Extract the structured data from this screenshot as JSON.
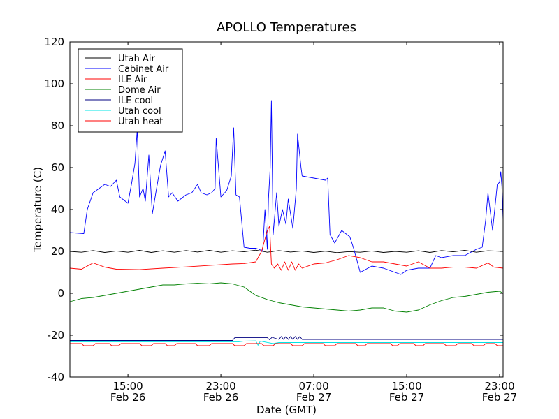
{
  "chart_data": {
    "type": "line",
    "title": "APOLLO Temperatures",
    "xlabel": "Date (GMT)",
    "ylabel": "Temperature (C)",
    "x_unit": "hours since Feb 26 10:00 GMT",
    "xlim": [
      0,
      37.3
    ],
    "ylim": [
      -40,
      120
    ],
    "yticks": [
      -40,
      -20,
      0,
      20,
      40,
      60,
      80,
      100,
      120
    ],
    "xticks": [
      {
        "x": 5,
        "line1": "15:00",
        "line2": "Feb 26"
      },
      {
        "x": 13,
        "line1": "23:00",
        "line2": "Feb 26"
      },
      {
        "x": 21,
        "line1": "07:00",
        "line2": "Feb 27"
      },
      {
        "x": 29,
        "line1": "15:00",
        "line2": "Feb 27"
      },
      {
        "x": 37,
        "line1": "23:00",
        "line2": "Feb 27"
      }
    ],
    "legend_position": "top-left",
    "series": [
      {
        "name": "Utah Air",
        "color": "#000000",
        "points": [
          [
            0,
            20
          ],
          [
            1,
            19.6
          ],
          [
            2,
            20.4
          ],
          [
            3,
            19.5
          ],
          [
            4,
            20.2
          ],
          [
            5,
            19.6
          ],
          [
            6,
            20.5
          ],
          [
            7,
            19.5
          ],
          [
            8,
            20.3
          ],
          [
            9,
            19.6
          ],
          [
            10,
            20.4
          ],
          [
            11,
            19.7
          ],
          [
            12,
            20.5
          ],
          [
            13,
            19.6
          ],
          [
            14,
            20.3
          ],
          [
            15,
            19.8
          ],
          [
            16,
            20.6
          ],
          [
            17,
            19.6
          ],
          [
            18,
            20.4
          ],
          [
            19,
            19.7
          ],
          [
            20,
            20.2
          ],
          [
            21,
            19.5
          ],
          [
            22,
            20.1
          ],
          [
            23,
            19.4
          ],
          [
            24,
            19.9
          ],
          [
            25,
            19.6
          ],
          [
            26,
            20.2
          ],
          [
            27,
            19.5
          ],
          [
            28,
            20
          ],
          [
            29,
            19.6
          ],
          [
            30,
            20.3
          ],
          [
            31,
            19.5
          ],
          [
            32,
            20.4
          ],
          [
            33,
            19.8
          ],
          [
            34,
            20.5
          ],
          [
            35,
            19.6
          ],
          [
            36,
            20.3
          ],
          [
            37.3,
            20
          ]
        ]
      },
      {
        "name": "Cabinet Air",
        "color": "#0000ff",
        "points": [
          [
            0,
            29
          ],
          [
            1.2,
            28.5
          ],
          [
            1.5,
            40
          ],
          [
            2,
            48
          ],
          [
            2.5,
            50
          ],
          [
            3,
            52
          ],
          [
            3.5,
            51
          ],
          [
            4,
            54
          ],
          [
            4.3,
            46
          ],
          [
            5,
            43
          ],
          [
            5.3,
            52
          ],
          [
            5.6,
            62
          ],
          [
            5.8,
            78
          ],
          [
            6,
            46
          ],
          [
            6.3,
            50
          ],
          [
            6.5,
            44
          ],
          [
            6.8,
            66
          ],
          [
            7.1,
            38
          ],
          [
            7.4,
            48
          ],
          [
            7.8,
            61
          ],
          [
            8.2,
            68
          ],
          [
            8.5,
            46
          ],
          [
            8.8,
            48
          ],
          [
            9.3,
            44
          ],
          [
            10,
            47
          ],
          [
            10.5,
            48
          ],
          [
            11,
            52
          ],
          [
            11.3,
            48
          ],
          [
            11.8,
            47
          ],
          [
            12.2,
            48
          ],
          [
            12.5,
            50
          ],
          [
            12.6,
            74
          ],
          [
            13,
            46
          ],
          [
            13.5,
            49
          ],
          [
            13.9,
            56
          ],
          [
            14.1,
            79
          ],
          [
            14.3,
            47
          ],
          [
            14.6,
            46
          ],
          [
            15,
            22
          ],
          [
            15.5,
            21.5
          ],
          [
            16,
            21.5
          ],
          [
            16.3,
            21
          ],
          [
            16.6,
            20
          ],
          [
            16.8,
            40
          ],
          [
            17,
            21
          ],
          [
            17.1,
            45
          ],
          [
            17.25,
            60
          ],
          [
            17.35,
            92
          ],
          [
            17.5,
            28
          ],
          [
            17.8,
            48
          ],
          [
            18,
            32
          ],
          [
            18.3,
            40
          ],
          [
            18.6,
            33
          ],
          [
            18.8,
            45
          ],
          [
            19,
            38
          ],
          [
            19.2,
            31
          ],
          [
            19.5,
            50
          ],
          [
            19.6,
            76
          ],
          [
            19.9,
            60
          ],
          [
            20,
            56
          ],
          [
            21,
            55
          ],
          [
            22,
            54
          ],
          [
            22.2,
            55
          ],
          [
            22.4,
            28
          ],
          [
            22.8,
            24
          ],
          [
            23,
            26
          ],
          [
            23.4,
            30
          ],
          [
            24.1,
            27
          ],
          [
            24.4,
            22
          ],
          [
            25,
            10
          ],
          [
            26,
            13
          ],
          [
            27,
            12
          ],
          [
            28,
            10
          ],
          [
            28.5,
            9
          ],
          [
            29,
            11
          ],
          [
            30,
            12
          ],
          [
            31,
            12
          ],
          [
            31.5,
            18
          ],
          [
            32,
            17
          ],
          [
            33,
            18
          ],
          [
            34,
            18
          ],
          [
            35,
            21
          ],
          [
            35.5,
            22
          ],
          [
            35.8,
            35
          ],
          [
            36,
            48
          ],
          [
            36.4,
            30
          ],
          [
            36.8,
            52
          ],
          [
            37,
            53
          ],
          [
            37.1,
            58
          ],
          [
            37.2,
            51
          ],
          [
            37.3,
            35
          ]
        ]
      },
      {
        "name": "ILE Air",
        "color": "#ff0000",
        "points": [
          [
            0,
            12
          ],
          [
            1,
            11.5
          ],
          [
            2,
            14.5
          ],
          [
            3,
            12.5
          ],
          [
            4,
            11.5
          ],
          [
            6,
            11.3
          ],
          [
            8,
            12
          ],
          [
            10,
            12.6
          ],
          [
            12,
            13.3
          ],
          [
            14,
            14
          ],
          [
            15,
            14.2
          ],
          [
            16,
            15
          ],
          [
            16.5,
            20
          ],
          [
            17,
            30
          ],
          [
            17.2,
            32
          ],
          [
            17.35,
            14
          ],
          [
            17.6,
            12
          ],
          [
            17.9,
            14
          ],
          [
            18.2,
            11
          ],
          [
            18.5,
            15
          ],
          [
            18.8,
            11
          ],
          [
            19.1,
            15
          ],
          [
            19.4,
            11
          ],
          [
            19.7,
            14
          ],
          [
            20,
            12
          ],
          [
            21,
            14
          ],
          [
            22,
            14.5
          ],
          [
            23,
            16
          ],
          [
            24,
            18
          ],
          [
            25,
            17
          ],
          [
            26,
            15
          ],
          [
            27,
            15
          ],
          [
            28,
            14
          ],
          [
            29,
            13
          ],
          [
            30,
            15
          ],
          [
            31,
            12
          ],
          [
            32,
            12
          ],
          [
            33,
            12.5
          ],
          [
            34,
            12.5
          ],
          [
            35,
            12
          ],
          [
            36,
            14.5
          ],
          [
            36.5,
            12.5
          ],
          [
            37.3,
            12
          ]
        ]
      },
      {
        "name": "Dome Air",
        "color": "#008000",
        "points": [
          [
            0,
            -4
          ],
          [
            1,
            -2.5
          ],
          [
            2,
            -2
          ],
          [
            3,
            -1
          ],
          [
            4,
            0
          ],
          [
            5,
            1
          ],
          [
            6,
            2
          ],
          [
            7,
            3
          ],
          [
            8,
            4
          ],
          [
            9,
            4
          ],
          [
            10,
            4.5
          ],
          [
            11,
            4.8
          ],
          [
            12,
            4.5
          ],
          [
            13,
            5
          ],
          [
            14,
            4.5
          ],
          [
            15,
            3
          ],
          [
            16,
            -1
          ],
          [
            17,
            -3
          ],
          [
            18,
            -4.5
          ],
          [
            19,
            -5.5
          ],
          [
            20,
            -6.5
          ],
          [
            21,
            -7
          ],
          [
            22,
            -7.5
          ],
          [
            23,
            -8
          ],
          [
            24,
            -8.5
          ],
          [
            25,
            -8
          ],
          [
            26,
            -7
          ],
          [
            27,
            -7
          ],
          [
            28,
            -8.5
          ],
          [
            29,
            -9
          ],
          [
            30,
            -8
          ],
          [
            31,
            -5.5
          ],
          [
            32,
            -3.5
          ],
          [
            33,
            -2
          ],
          [
            34,
            -1.5
          ],
          [
            35,
            -0.5
          ],
          [
            36,
            0.5
          ],
          [
            37,
            1
          ],
          [
            37.3,
            0
          ]
        ]
      },
      {
        "name": "ILE cool",
        "color": "#000080",
        "points": [
          [
            0,
            -22.5
          ],
          [
            14,
            -22.5
          ],
          [
            14.2,
            -21.2
          ],
          [
            17,
            -21.2
          ],
          [
            17.2,
            -22.2
          ],
          [
            17.4,
            -21
          ],
          [
            18,
            -22
          ],
          [
            18.2,
            -20.6
          ],
          [
            18.4,
            -22
          ],
          [
            18.6,
            -20.6
          ],
          [
            18.8,
            -22
          ],
          [
            19,
            -20.6
          ],
          [
            19.2,
            -22
          ],
          [
            19.4,
            -20.6
          ],
          [
            19.6,
            -22
          ],
          [
            19.8,
            -20.6
          ],
          [
            20,
            -22
          ],
          [
            37.3,
            -22
          ]
        ]
      },
      {
        "name": "Utah cool",
        "color": "#00e5e5",
        "points": [
          [
            0,
            -23.2
          ],
          [
            14.5,
            -23.2
          ],
          [
            15,
            -22.8
          ],
          [
            16,
            -22.7
          ],
          [
            16.2,
            -24.8
          ],
          [
            16.4,
            -22.8
          ],
          [
            17.5,
            -24
          ],
          [
            18,
            -23.5
          ],
          [
            20,
            -23.5
          ],
          [
            37.3,
            -23.5
          ]
        ]
      },
      {
        "name": "Utah heat",
        "color": "#ff0000",
        "points": [
          [
            0,
            -24
          ],
          [
            1,
            -24
          ],
          [
            1.2,
            -25
          ],
          [
            2,
            -25
          ],
          [
            2.2,
            -24
          ],
          [
            3.4,
            -24
          ],
          [
            3.6,
            -25
          ],
          [
            4.2,
            -25
          ],
          [
            4.4,
            -24
          ],
          [
            6,
            -24
          ],
          [
            6.2,
            -25
          ],
          [
            7,
            -25
          ],
          [
            7.2,
            -24
          ],
          [
            8.2,
            -24
          ],
          [
            8.4,
            -25
          ],
          [
            9,
            -25
          ],
          [
            9.2,
            -24
          ],
          [
            10.8,
            -24
          ],
          [
            11,
            -25
          ],
          [
            12,
            -25
          ],
          [
            12.2,
            -24
          ],
          [
            14,
            -24
          ],
          [
            14.2,
            -25
          ],
          [
            15,
            -25
          ],
          [
            15.2,
            -24
          ],
          [
            16.5,
            -24
          ],
          [
            16.7,
            -25
          ],
          [
            17.5,
            -25
          ],
          [
            17.7,
            -24
          ],
          [
            19,
            -24
          ],
          [
            19.2,
            -25
          ],
          [
            20,
            -25
          ],
          [
            20.2,
            -24
          ],
          [
            21.8,
            -24
          ],
          [
            22,
            -25
          ],
          [
            22.8,
            -25
          ],
          [
            23,
            -24
          ],
          [
            24.6,
            -24
          ],
          [
            24.8,
            -25
          ],
          [
            25.4,
            -25
          ],
          [
            25.6,
            -24
          ],
          [
            27.6,
            -24
          ],
          [
            27.8,
            -25
          ],
          [
            28.2,
            -25
          ],
          [
            28.4,
            -24
          ],
          [
            29.6,
            -24
          ],
          [
            29.8,
            -25
          ],
          [
            30.4,
            -25
          ],
          [
            30.6,
            -24
          ],
          [
            32.2,
            -24
          ],
          [
            32.4,
            -25
          ],
          [
            33.2,
            -25
          ],
          [
            33.4,
            -24
          ],
          [
            34.6,
            -24
          ],
          [
            34.8,
            -25
          ],
          [
            35.6,
            -25
          ],
          [
            35.8,
            -24
          ],
          [
            36.6,
            -24
          ],
          [
            36.8,
            -25
          ],
          [
            37.3,
            -25
          ]
        ]
      }
    ]
  }
}
